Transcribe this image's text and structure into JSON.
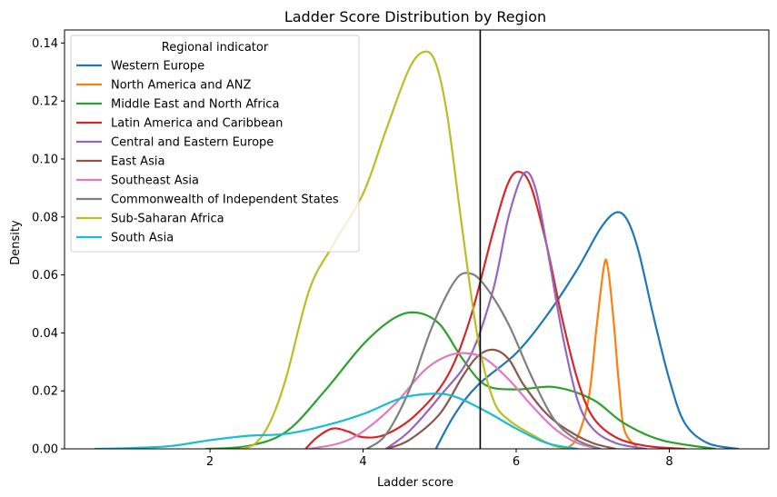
{
  "chart_data": {
    "type": "line",
    "title": "Ladder Score Distribution by Region",
    "xlabel": "Ladder score",
    "ylabel": "Density",
    "xlim": [
      0.1,
      9.3
    ],
    "ylim": [
      0,
      0.1445
    ],
    "xticks": [
      2,
      4,
      6,
      8
    ],
    "yticks": [
      0.0,
      0.02,
      0.04,
      0.06,
      0.08,
      0.1,
      0.12,
      0.14
    ],
    "ytick_labels": [
      "0.00",
      "0.02",
      "0.04",
      "0.06",
      "0.08",
      "0.10",
      "0.12",
      "0.14"
    ],
    "vline": 5.53,
    "legend": {
      "title": "Regional indicator",
      "placement": "top-left"
    },
    "series": [
      {
        "name": "Western Europe",
        "color": "#1f77b4",
        "points": [
          [
            4.95,
            0
          ],
          [
            5.2,
            0.012
          ],
          [
            5.5,
            0.022
          ],
          [
            6.0,
            0.033
          ],
          [
            6.4,
            0.046
          ],
          [
            6.8,
            0.062
          ],
          [
            7.1,
            0.076
          ],
          [
            7.3,
            0.0815
          ],
          [
            7.45,
            0.079
          ],
          [
            7.6,
            0.068
          ],
          [
            7.8,
            0.045
          ],
          [
            8.0,
            0.024
          ],
          [
            8.2,
            0.009
          ],
          [
            8.5,
            0.002
          ],
          [
            8.9,
            0
          ]
        ]
      },
      {
        "name": "North America and ANZ",
        "color": "#ff7f0e",
        "points": [
          [
            6.65,
            0
          ],
          [
            6.8,
            0.004
          ],
          [
            6.95,
            0.018
          ],
          [
            7.05,
            0.042
          ],
          [
            7.15,
            0.0635
          ],
          [
            7.2,
            0.062
          ],
          [
            7.27,
            0.045
          ],
          [
            7.35,
            0.02
          ],
          [
            7.42,
            0.006
          ],
          [
            7.6,
            0
          ]
        ]
      },
      {
        "name": "Middle East and North Africa",
        "color": "#2ca02c",
        "points": [
          [
            1.95,
            0
          ],
          [
            2.5,
            0.001
          ],
          [
            3.0,
            0.006
          ],
          [
            3.5,
            0.02
          ],
          [
            4.0,
            0.036
          ],
          [
            4.4,
            0.045
          ],
          [
            4.7,
            0.047
          ],
          [
            5.0,
            0.043
          ],
          [
            5.3,
            0.031
          ],
          [
            5.6,
            0.022
          ],
          [
            6.0,
            0.0205
          ],
          [
            6.5,
            0.0213
          ],
          [
            7.0,
            0.017
          ],
          [
            7.4,
            0.009
          ],
          [
            7.9,
            0.003
          ],
          [
            8.6,
            0
          ]
        ]
      },
      {
        "name": "Latin America and Caribbean",
        "color": "#d62728",
        "points": [
          [
            3.25,
            0
          ],
          [
            3.4,
            0.004
          ],
          [
            3.6,
            0.007
          ],
          [
            3.8,
            0.006
          ],
          [
            4.0,
            0.004
          ],
          [
            4.3,
            0.005
          ],
          [
            4.7,
            0.012
          ],
          [
            5.1,
            0.025
          ],
          [
            5.4,
            0.045
          ],
          [
            5.7,
            0.075
          ],
          [
            5.9,
            0.092
          ],
          [
            6.05,
            0.0955
          ],
          [
            6.2,
            0.09
          ],
          [
            6.4,
            0.07
          ],
          [
            6.6,
            0.045
          ],
          [
            6.8,
            0.024
          ],
          [
            7.0,
            0.011
          ],
          [
            7.3,
            0.004
          ],
          [
            7.7,
            0.001
          ],
          [
            8.2,
            0
          ]
        ]
      },
      {
        "name": "Central and Eastern Europe",
        "color": "#9467bd",
        "points": [
          [
            4.3,
            0
          ],
          [
            4.6,
            0.006
          ],
          [
            5.0,
            0.018
          ],
          [
            5.4,
            0.032
          ],
          [
            5.7,
            0.055
          ],
          [
            5.9,
            0.08
          ],
          [
            6.1,
            0.095
          ],
          [
            6.25,
            0.09
          ],
          [
            6.4,
            0.07
          ],
          [
            6.6,
            0.04
          ],
          [
            6.8,
            0.017
          ],
          [
            7.0,
            0.007
          ],
          [
            7.3,
            0.002
          ],
          [
            7.7,
            0
          ]
        ]
      },
      {
        "name": "East Asia",
        "color": "#8c564b",
        "points": [
          [
            4.3,
            0
          ],
          [
            4.6,
            0.003
          ],
          [
            5.0,
            0.012
          ],
          [
            5.3,
            0.025
          ],
          [
            5.5,
            0.032
          ],
          [
            5.7,
            0.0342
          ],
          [
            5.9,
            0.031
          ],
          [
            6.1,
            0.022
          ],
          [
            6.4,
            0.012
          ],
          [
            6.7,
            0.006
          ],
          [
            7.0,
            0.002
          ],
          [
            7.3,
            0
          ]
        ]
      },
      {
        "name": "Southeast Asia",
        "color": "#e377c2",
        "points": [
          [
            3.3,
            0
          ],
          [
            3.7,
            0.002
          ],
          [
            4.0,
            0.006
          ],
          [
            4.4,
            0.015
          ],
          [
            4.8,
            0.027
          ],
          [
            5.1,
            0.032
          ],
          [
            5.35,
            0.033
          ],
          [
            5.6,
            0.031
          ],
          [
            5.9,
            0.024
          ],
          [
            6.2,
            0.015
          ],
          [
            6.5,
            0.007
          ],
          [
            6.8,
            0.002
          ],
          [
            7.1,
            0
          ]
        ]
      },
      {
        "name": "Commonwealth of Independent States",
        "color": "#7f7f7f",
        "points": [
          [
            4.05,
            0
          ],
          [
            4.3,
            0.005
          ],
          [
            4.6,
            0.02
          ],
          [
            4.9,
            0.042
          ],
          [
            5.2,
            0.058
          ],
          [
            5.4,
            0.0605
          ],
          [
            5.6,
            0.056
          ],
          [
            5.9,
            0.043
          ],
          [
            6.2,
            0.025
          ],
          [
            6.5,
            0.01
          ],
          [
            6.8,
            0.003
          ],
          [
            7.1,
            0
          ]
        ]
      },
      {
        "name": "Sub-Saharan Africa",
        "color": "#bcbd22",
        "points": [
          [
            2.4,
            0
          ],
          [
            2.6,
            0.002
          ],
          [
            2.8,
            0.01
          ],
          [
            3.0,
            0.025
          ],
          [
            3.3,
            0.055
          ],
          [
            3.6,
            0.07
          ],
          [
            4.0,
            0.088
          ],
          [
            4.3,
            0.11
          ],
          [
            4.6,
            0.131
          ],
          [
            4.8,
            0.137
          ],
          [
            4.95,
            0.133
          ],
          [
            5.1,
            0.115
          ],
          [
            5.3,
            0.075
          ],
          [
            5.5,
            0.038
          ],
          [
            5.7,
            0.017
          ],
          [
            5.9,
            0.01
          ],
          [
            6.2,
            0.005
          ],
          [
            6.5,
            0.001
          ],
          [
            6.8,
            0
          ]
        ]
      },
      {
        "name": "South Asia",
        "color": "#17becf",
        "points": [
          [
            0.5,
            0
          ],
          [
            1.0,
            0.0003
          ],
          [
            1.5,
            0.001
          ],
          [
            2.0,
            0.003
          ],
          [
            2.5,
            0.0045
          ],
          [
            3.0,
            0.0052
          ],
          [
            3.5,
            0.008
          ],
          [
            4.0,
            0.012
          ],
          [
            4.5,
            0.0175
          ],
          [
            4.9,
            0.019
          ],
          [
            5.2,
            0.018
          ],
          [
            5.6,
            0.013
          ],
          [
            6.0,
            0.007
          ],
          [
            6.4,
            0.002
          ],
          [
            6.8,
            0
          ]
        ]
      }
    ]
  }
}
